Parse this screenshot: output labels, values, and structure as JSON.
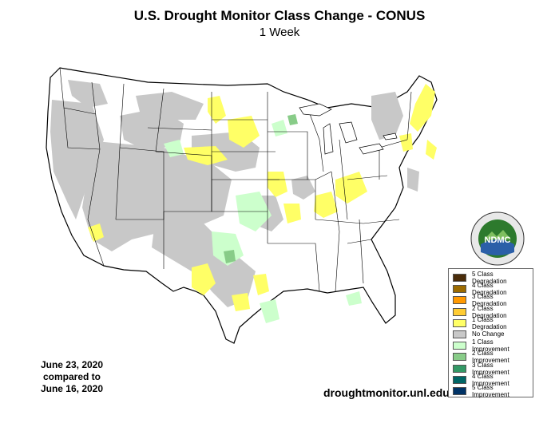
{
  "title": "U.S. Drought Monitor Class Change - CONUS",
  "subtitle": "1 Week",
  "date_block": {
    "line1": "June 23, 2020",
    "line2": "compared to",
    "line3": "June 16, 2020"
  },
  "source": "droughtmonitor.unl.edu",
  "logo": {
    "center_text": "NDMC",
    "ring_text": "NATIONAL DROUGHT MITIGATION CENTER · UNIVERSITY OF NEBRASKA"
  },
  "legend": [
    {
      "label": "5 Class Degradation",
      "color": "#4a2c0a"
    },
    {
      "label": "4 Class Degradation",
      "color": "#9c6b00"
    },
    {
      "label": "3 Class Degradation",
      "color": "#ff9900"
    },
    {
      "label": "2 Class Degradation",
      "color": "#ffcc33"
    },
    {
      "label": "1 Class Degradation",
      "color": "#ffff66"
    },
    {
      "label": "No Change",
      "color": "#c8c8c8"
    },
    {
      "label": "1 Class Improvement",
      "color": "#ccffcc"
    },
    {
      "label": "2 Class Improvement",
      "color": "#88cc88"
    },
    {
      "label": "3 Class Improvement",
      "color": "#339966"
    },
    {
      "label": "4 Class Improvement",
      "color": "#006666"
    },
    {
      "label": "5 Class Improvement",
      "color": "#003366"
    }
  ],
  "colors": {
    "no_change": "#c8c8c8",
    "degradation_1": "#ffff66",
    "improvement_1": "#ccffcc",
    "improvement_2": "#88cc88",
    "state_border": "#000000",
    "background": "#ffffff"
  }
}
